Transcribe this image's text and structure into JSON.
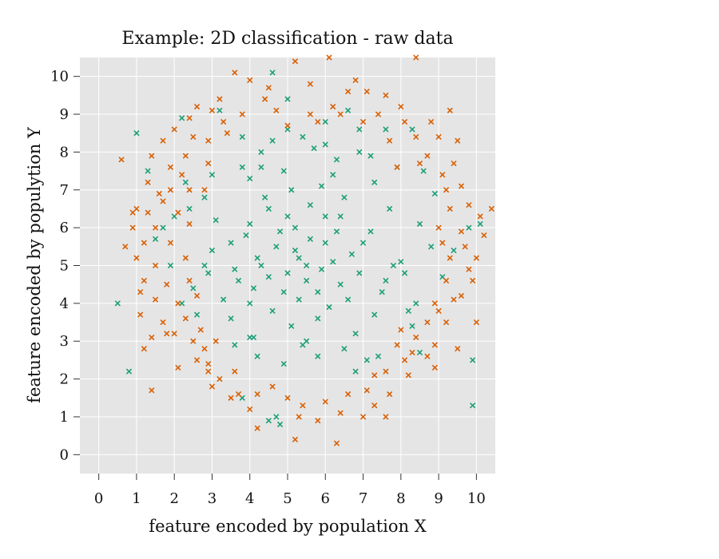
{
  "chart_data": {
    "type": "scatter",
    "title": "Example: 2D classification - raw data",
    "xlabel": "feature encoded by population X",
    "ylabel": "feature encoded by populytion Y",
    "xlim": [
      -0.5,
      10.5
    ],
    "ylim": [
      -0.5,
      10.5
    ],
    "xticks": [
      "0",
      "1",
      "2",
      "3",
      "4",
      "5",
      "6",
      "7",
      "8",
      "9",
      "10"
    ],
    "yticks": [
      "0",
      "1",
      "2",
      "3",
      "4",
      "5",
      "6",
      "7",
      "8",
      "9",
      "10"
    ],
    "grid": true,
    "background": "#e5e5e5",
    "marker": "x",
    "series": [
      {
        "color": "#1b9e77",
        "points": [
          [
            5.2,
            5.4
          ],
          [
            4.8,
            5.9
          ],
          [
            5.5,
            5.0
          ],
          [
            6.0,
            5.6
          ],
          [
            4.5,
            4.7
          ],
          [
            5.8,
            4.3
          ],
          [
            6.3,
            5.9
          ],
          [
            4.2,
            5.2
          ],
          [
            5.0,
            6.3
          ],
          [
            5.6,
            6.6
          ],
          [
            4.0,
            6.1
          ],
          [
            6.7,
            5.3
          ],
          [
            5.3,
            4.1
          ],
          [
            4.6,
            3.8
          ],
          [
            6.1,
            3.9
          ],
          [
            3.7,
            4.6
          ],
          [
            6.9,
            4.8
          ],
          [
            5.9,
            7.1
          ],
          [
            4.4,
            6.8
          ],
          [
            3.5,
            5.6
          ],
          [
            7.2,
            5.9
          ],
          [
            5.1,
            3.4
          ],
          [
            6.5,
            6.8
          ],
          [
            3.3,
            4.1
          ],
          [
            7.5,
            4.3
          ],
          [
            4.9,
            7.5
          ],
          [
            6.2,
            7.4
          ],
          [
            3.1,
            6.2
          ],
          [
            7.7,
            6.5
          ],
          [
            5.4,
            2.9
          ],
          [
            4.1,
            3.1
          ],
          [
            6.8,
            3.2
          ],
          [
            3.8,
            7.6
          ],
          [
            7.3,
            7.2
          ],
          [
            2.8,
            5.0
          ],
          [
            8.0,
            5.1
          ],
          [
            5.7,
            8.1
          ],
          [
            4.3,
            8.0
          ],
          [
            6.9,
            8.0
          ],
          [
            2.6,
            3.7
          ],
          [
            8.2,
            3.8
          ],
          [
            5.0,
            8.6
          ],
          [
            3.0,
            7.4
          ],
          [
            7.9,
            7.6
          ],
          [
            2.4,
            6.5
          ],
          [
            8.5,
            6.1
          ],
          [
            2.5,
            4.4
          ],
          [
            8.4,
            4.0
          ],
          [
            5.3,
            5.2
          ],
          [
            5.0,
            4.8
          ],
          [
            4.7,
            5.5
          ],
          [
            5.6,
            5.7
          ],
          [
            6.4,
            4.5
          ],
          [
            4.1,
            4.4
          ],
          [
            5.8,
            3.6
          ],
          [
            6.6,
            4.1
          ],
          [
            3.9,
            5.8
          ],
          [
            4.5,
            6.5
          ],
          [
            6.0,
            6.3
          ],
          [
            5.2,
            6.0
          ],
          [
            4.9,
            4.3
          ],
          [
            5.5,
            4.6
          ],
          [
            6.2,
            5.1
          ],
          [
            4.3,
            5.0
          ],
          [
            3.6,
            4.9
          ],
          [
            7.0,
            5.6
          ],
          [
            5.1,
            7.0
          ],
          [
            6.4,
            6.3
          ],
          [
            4.0,
            4.0
          ],
          [
            5.9,
            4.9
          ],
          [
            0.5,
            4.0
          ],
          [
            0.8,
            2.2
          ],
          [
            1.0,
            8.5
          ],
          [
            1.3,
            7.5
          ],
          [
            2.2,
            8.9
          ],
          [
            3.2,
            9.1
          ],
          [
            4.6,
            10.1
          ],
          [
            5.0,
            9.4
          ],
          [
            6.6,
            9.1
          ],
          [
            7.6,
            8.6
          ],
          [
            8.3,
            8.6
          ],
          [
            9.4,
            5.4
          ],
          [
            9.8,
            6.0
          ],
          [
            10.1,
            6.1
          ],
          [
            9.9,
            2.5
          ],
          [
            9.9,
            1.3
          ],
          [
            9.1,
            4.7
          ],
          [
            8.8,
            5.5
          ],
          [
            4.5,
            0.9
          ],
          [
            4.7,
            1.0
          ],
          [
            4.8,
            0.8
          ],
          [
            7.1,
            2.5
          ],
          [
            8.5,
            2.7
          ],
          [
            1.7,
            6.0
          ],
          [
            2.0,
            6.3
          ],
          [
            1.5,
            5.7
          ],
          [
            3.6,
            2.9
          ],
          [
            4.0,
            3.1
          ],
          [
            3.8,
            1.5
          ],
          [
            6.5,
            2.8
          ],
          [
            5.5,
            3.0
          ],
          [
            4.2,
            2.6
          ],
          [
            6.8,
            2.2
          ],
          [
            7.4,
            2.6
          ],
          [
            3.0,
            5.4
          ],
          [
            2.9,
            4.8
          ],
          [
            7.8,
            5.0
          ],
          [
            7.6,
            4.6
          ],
          [
            6.0,
            8.8
          ],
          [
            5.4,
            8.4
          ],
          [
            4.6,
            8.3
          ],
          [
            3.8,
            8.4
          ],
          [
            6.9,
            8.6
          ],
          [
            7.2,
            7.9
          ],
          [
            2.8,
            6.8
          ],
          [
            2.3,
            7.2
          ],
          [
            8.6,
            7.5
          ],
          [
            8.9,
            6.9
          ],
          [
            1.9,
            5.0
          ],
          [
            2.2,
            4.0
          ],
          [
            8.1,
            4.8
          ],
          [
            8.3,
            3.4
          ],
          [
            6.3,
            7.8
          ],
          [
            4.0,
            7.3
          ],
          [
            5.8,
            2.6
          ],
          [
            4.9,
            2.4
          ],
          [
            3.5,
            3.6
          ],
          [
            7.3,
            3.7
          ],
          [
            6.0,
            8.2
          ],
          [
            4.3,
            7.6
          ]
        ]
      },
      {
        "color": "#d95f02",
        "points": [
          [
            5.2,
            10.4
          ],
          [
            6.1,
            10.5
          ],
          [
            8.4,
            10.5
          ],
          [
            3.6,
            10.1
          ],
          [
            4.0,
            9.9
          ],
          [
            4.5,
            9.7
          ],
          [
            5.6,
            9.8
          ],
          [
            6.6,
            9.6
          ],
          [
            7.1,
            9.6
          ],
          [
            7.6,
            9.5
          ],
          [
            3.2,
            9.4
          ],
          [
            2.6,
            9.2
          ],
          [
            2.4,
            8.9
          ],
          [
            3.8,
            9.0
          ],
          [
            4.7,
            9.1
          ],
          [
            5.8,
            8.8
          ],
          [
            6.4,
            9.0
          ],
          [
            7.0,
            8.8
          ],
          [
            8.1,
            8.8
          ],
          [
            8.8,
            8.8
          ],
          [
            9.3,
            9.1
          ],
          [
            2.0,
            8.6
          ],
          [
            1.7,
            8.3
          ],
          [
            2.5,
            8.4
          ],
          [
            2.9,
            8.3
          ],
          [
            3.4,
            8.5
          ],
          [
            7.7,
            8.3
          ],
          [
            8.4,
            8.4
          ],
          [
            9.0,
            8.4
          ],
          [
            9.5,
            8.3
          ],
          [
            1.4,
            7.9
          ],
          [
            0.6,
            7.8
          ],
          [
            1.9,
            7.6
          ],
          [
            2.2,
            7.4
          ],
          [
            2.9,
            7.7
          ],
          [
            7.9,
            7.6
          ],
          [
            8.5,
            7.7
          ],
          [
            9.4,
            7.7
          ],
          [
            1.3,
            7.2
          ],
          [
            1.6,
            6.9
          ],
          [
            2.4,
            7.0
          ],
          [
            2.8,
            7.0
          ],
          [
            9.2,
            7.0
          ],
          [
            9.6,
            7.1
          ],
          [
            1.0,
            6.5
          ],
          [
            1.3,
            6.4
          ],
          [
            1.7,
            6.7
          ],
          [
            2.1,
            6.4
          ],
          [
            9.3,
            6.5
          ],
          [
            9.8,
            6.6
          ],
          [
            10.4,
            6.5
          ],
          [
            0.9,
            6.0
          ],
          [
            1.5,
            6.0
          ],
          [
            2.4,
            6.1
          ],
          [
            9.0,
            6.0
          ],
          [
            9.6,
            5.9
          ],
          [
            10.2,
            5.8
          ],
          [
            0.7,
            5.5
          ],
          [
            1.2,
            5.6
          ],
          [
            1.9,
            5.6
          ],
          [
            9.1,
            5.6
          ],
          [
            9.7,
            5.5
          ],
          [
            10.0,
            5.2
          ],
          [
            1.0,
            5.2
          ],
          [
            1.5,
            5.0
          ],
          [
            2.3,
            5.2
          ],
          [
            9.3,
            5.2
          ],
          [
            9.8,
            4.9
          ],
          [
            1.2,
            4.6
          ],
          [
            1.8,
            4.5
          ],
          [
            2.4,
            4.6
          ],
          [
            9.2,
            4.6
          ],
          [
            9.9,
            4.6
          ],
          [
            1.5,
            4.1
          ],
          [
            2.1,
            4.0
          ],
          [
            2.6,
            4.2
          ],
          [
            8.9,
            4.0
          ],
          [
            9.4,
            4.1
          ],
          [
            1.1,
            3.7
          ],
          [
            1.7,
            3.5
          ],
          [
            2.3,
            3.6
          ],
          [
            8.7,
            3.5
          ],
          [
            9.2,
            3.5
          ],
          [
            10.0,
            3.5
          ],
          [
            1.4,
            3.1
          ],
          [
            2.0,
            3.2
          ],
          [
            2.5,
            3.0
          ],
          [
            8.4,
            3.1
          ],
          [
            8.9,
            2.9
          ],
          [
            9.5,
            2.8
          ],
          [
            1.2,
            2.8
          ],
          [
            2.6,
            2.5
          ],
          [
            2.9,
            2.4
          ],
          [
            8.1,
            2.5
          ],
          [
            8.7,
            2.6
          ],
          [
            2.1,
            2.3
          ],
          [
            3.2,
            2.0
          ],
          [
            3.6,
            2.2
          ],
          [
            7.6,
            2.2
          ],
          [
            8.2,
            2.1
          ],
          [
            8.9,
            2.3
          ],
          [
            1.4,
            1.7
          ],
          [
            3.7,
            1.6
          ],
          [
            4.2,
            1.6
          ],
          [
            4.6,
            1.8
          ],
          [
            7.1,
            1.7
          ],
          [
            7.7,
            1.6
          ],
          [
            5.0,
            1.5
          ],
          [
            5.4,
            1.3
          ],
          [
            6.0,
            1.4
          ],
          [
            6.6,
            1.6
          ],
          [
            7.3,
            1.3
          ],
          [
            4.0,
            1.2
          ],
          [
            5.3,
            1.0
          ],
          [
            5.8,
            0.9
          ],
          [
            6.4,
            1.1
          ],
          [
            7.0,
            1.0
          ],
          [
            4.2,
            0.7
          ],
          [
            5.2,
            0.4
          ],
          [
            6.3,
            0.3
          ],
          [
            7.6,
            1.0
          ],
          [
            3.5,
            1.5
          ],
          [
            3.0,
            1.8
          ],
          [
            2.8,
            2.8
          ],
          [
            3.1,
            3.0
          ],
          [
            7.9,
            2.9
          ],
          [
            8.3,
            2.7
          ],
          [
            1.1,
            4.3
          ],
          [
            9.6,
            4.2
          ],
          [
            0.9,
            6.4
          ],
          [
            10.1,
            6.3
          ],
          [
            1.9,
            7.0
          ],
          [
            2.3,
            7.9
          ],
          [
            9.1,
            7.4
          ],
          [
            8.7,
            7.9
          ],
          [
            3.3,
            8.8
          ],
          [
            7.4,
            9.0
          ],
          [
            5.0,
            8.7
          ],
          [
            6.2,
            9.2
          ],
          [
            4.4,
            9.4
          ],
          [
            6.8,
            9.9
          ],
          [
            3.0,
            9.1
          ],
          [
            8.0,
            9.2
          ],
          [
            5.6,
            9.0
          ],
          [
            2.7,
            3.3
          ],
          [
            1.8,
            3.2
          ],
          [
            8.0,
            3.3
          ],
          [
            9.0,
            3.8
          ],
          [
            2.9,
            2.2
          ],
          [
            7.3,
            2.1
          ]
        ]
      }
    ]
  }
}
